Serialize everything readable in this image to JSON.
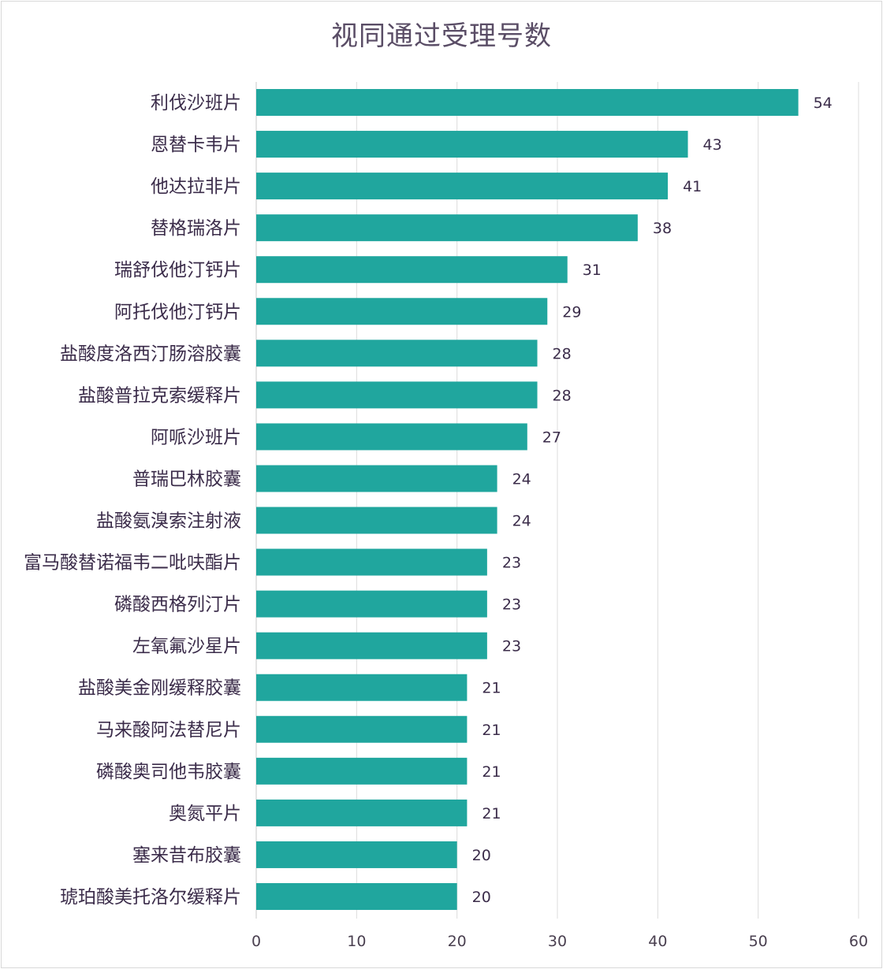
{
  "chart_data": {
    "type": "bar",
    "orientation": "horizontal",
    "title": "视同通过受理号数",
    "xlabel": "",
    "ylabel": "",
    "xlim": [
      0,
      60
    ],
    "xticks": [
      0,
      10,
      20,
      30,
      40,
      50,
      60
    ],
    "grid": "vertical",
    "legend": "none",
    "bar_color": "#20a69e",
    "categories": [
      "利伐沙班片",
      "恩替卡韦片",
      "他达拉非片",
      "替格瑞洛片",
      "瑞舒伐他汀钙片",
      "阿托伐他汀钙片",
      "盐酸度洛西汀肠溶胶囊",
      "盐酸普拉克索缓释片",
      "阿哌沙班片",
      "普瑞巴林胶囊",
      "盐酸氨溴索注射液",
      "富马酸替诺福韦二吡呋酯片",
      "磷酸西格列汀片",
      "左氧氟沙星片",
      "盐酸美金刚缓释胶囊",
      "马来酸阿法替尼片",
      "磷酸奥司他韦胶囊",
      "奥氮平片",
      "塞来昔布胶囊",
      "琥珀酸美托洛尔缓释片"
    ],
    "values": [
      54,
      43,
      41,
      38,
      31,
      29,
      28,
      28,
      27,
      24,
      24,
      23,
      23,
      23,
      21,
      21,
      21,
      21,
      20,
      20
    ]
  }
}
